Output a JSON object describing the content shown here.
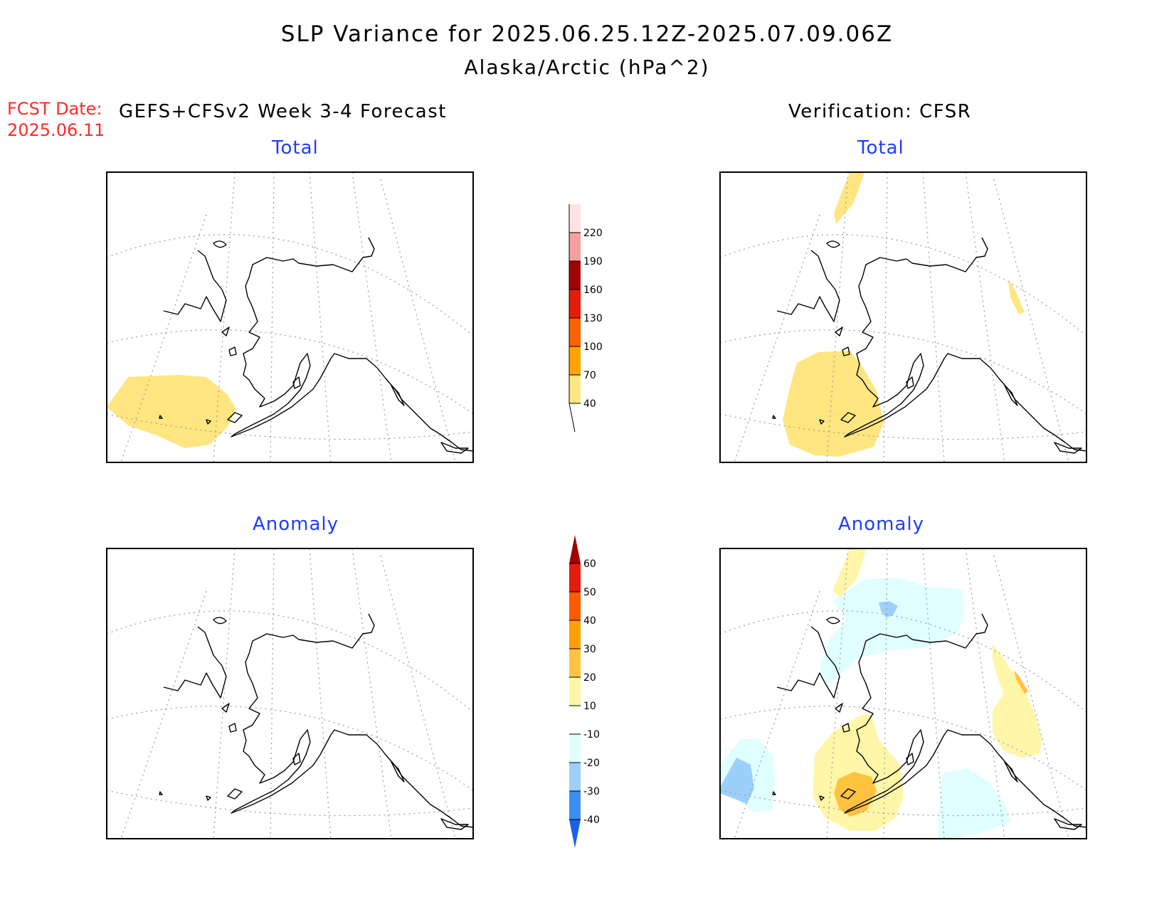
{
  "header": {
    "title": "SLP Variance for 2025.06.25.12Z-2025.07.09.06Z",
    "subtitle": "Alaska/Arctic (hPa^2)",
    "fcst_label": "FCST Date:",
    "fcst_date": "2025.06.11",
    "left_column_title": "GEFS+CFSv2 Week 3-4 Forecast",
    "right_column_title": "Verification: CFSR"
  },
  "panels": {
    "forecast_total": {
      "label": "Total"
    },
    "verification_total": {
      "label": "Total"
    },
    "forecast_anomaly": {
      "label": "Anomaly"
    },
    "verification_anomaly": {
      "label": "Anomaly"
    }
  },
  "colorbars": {
    "total": {
      "ticks": [
        "40",
        "70",
        "100",
        "130",
        "160",
        "190",
        "220"
      ],
      "colors": [
        "#ffe680",
        "#ffa400",
        "#ff6200",
        "#e81b0b",
        "#a50000",
        "#f4a0a0",
        "#ffe3e3"
      ]
    },
    "anomaly": {
      "ticks": [
        "-40",
        "-30",
        "-20",
        "-10",
        "10",
        "20",
        "30",
        "40",
        "50",
        "60"
      ],
      "colors": [
        "#1a60e8",
        "#3c8ff0",
        "#9ccffa",
        "#e0ffff",
        "#ffffff",
        "#fff6a8",
        "#ffc340",
        "#ff9f00",
        "#ff5a00",
        "#e51b0b",
        "#a20000"
      ]
    }
  },
  "colors": {
    "fcst_text": "#ff2a2a",
    "panel_label": "#1f3dff"
  }
}
